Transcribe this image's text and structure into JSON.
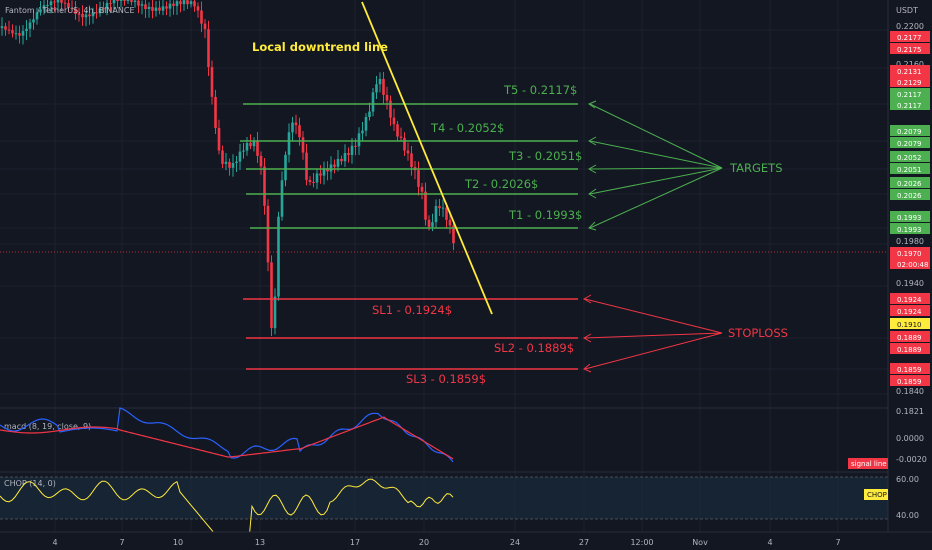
{
  "header": {
    "symbol_line": "Fantom / TetherUS, 4h, BINANCE",
    "currency": "USDT"
  },
  "colors": {
    "background": "#131722",
    "up": "#26a69a",
    "down": "#f23645",
    "green_ann": "#4caf50",
    "red_ann": "#f23645",
    "trendline": "#ffeb3b",
    "macd_line": "#2962ff",
    "signal_line": "#f23645",
    "chop_line": "#ffeb3b"
  },
  "price_axis": {
    "ticks": [
      "0.2200",
      "0.2160",
      "0.1980",
      "0.1940",
      "0.1840",
      "0.1821"
    ],
    "badges": [
      {
        "text": "0.2177",
        "color": "#f23645"
      },
      {
        "text": "0.2175",
        "color": "#f23645"
      },
      {
        "text": "0.2131",
        "color": "#f23645"
      },
      {
        "text": "0.2129",
        "color": "#f23645"
      },
      {
        "text": "0.2117",
        "color": "#4caf50"
      },
      {
        "text": "0.2117",
        "color": "#4caf50"
      },
      {
        "text": "0.2079",
        "color": "#4caf50"
      },
      {
        "text": "0.2079",
        "color": "#4caf50"
      },
      {
        "text": "0.2052",
        "color": "#4caf50"
      },
      {
        "text": "0.2051",
        "color": "#4caf50"
      },
      {
        "text": "0.2026",
        "color": "#4caf50"
      },
      {
        "text": "0.2026",
        "color": "#4caf50"
      },
      {
        "text": "0.1993",
        "color": "#4caf50"
      },
      {
        "text": "0.1993",
        "color": "#4caf50"
      },
      {
        "text": "0.1970",
        "color": "#f23645"
      },
      {
        "text": "02:00:48",
        "color": "#f23645"
      },
      {
        "text": "0.1924",
        "color": "#f23645"
      },
      {
        "text": "0.1924",
        "color": "#f23645"
      },
      {
        "text": "0.1910",
        "color": "#ffeb3b"
      },
      {
        "text": "0.1889",
        "color": "#f23645"
      },
      {
        "text": "0.1889",
        "color": "#f23645"
      },
      {
        "text": "0.1859",
        "color": "#f23645"
      },
      {
        "text": "0.1859",
        "color": "#f23645"
      }
    ]
  },
  "time_axis": [
    "4",
    "7",
    "10",
    "13",
    "17",
    "20",
    "24",
    "27",
    "12:00",
    "Nov",
    "4",
    "7"
  ],
  "chart_data": [
    {
      "type": "candlestick",
      "title": "Fantom / TetherUS, 4h, BINANCE",
      "ylabel": "USDT",
      "ylim": [
        0.1821,
        0.22
      ],
      "targets": [
        {
          "label": "T1 - 0.1993$",
          "value": 0.1993
        },
        {
          "label": "T2 - 0.2026$",
          "value": 0.2026
        },
        {
          "label": "T3 - 0.2051$",
          "value": 0.2051
        },
        {
          "label": "T4 - 0.2052$",
          "value": 0.2052
        },
        {
          "label": "T5 - 0.2117$",
          "value": 0.2117
        }
      ],
      "stoplosses": [
        {
          "label": "SL1 - 0.1924$",
          "value": 0.1924
        },
        {
          "label": "SL2 - 0.1889$",
          "value": 0.1889
        },
        {
          "label": "SL3 - 0.1859$",
          "value": 0.1859
        }
      ],
      "annotations": {
        "trendline": "Local downtrend line",
        "targets": "TARGETS",
        "stoploss": "STOPLOSS"
      },
      "last_price": 0.197,
      "countdown": "02:00:48"
    },
    {
      "type": "line",
      "title": "macd (8, 19, close, 9)",
      "ticks": [
        "0.0000",
        "-0.0020"
      ],
      "legend_badge": "signal line"
    },
    {
      "type": "line",
      "title": "CHOP (14, 0)",
      "ticks": [
        "60.00",
        "40.00"
      ],
      "legend_badge": "CHOP"
    }
  ]
}
